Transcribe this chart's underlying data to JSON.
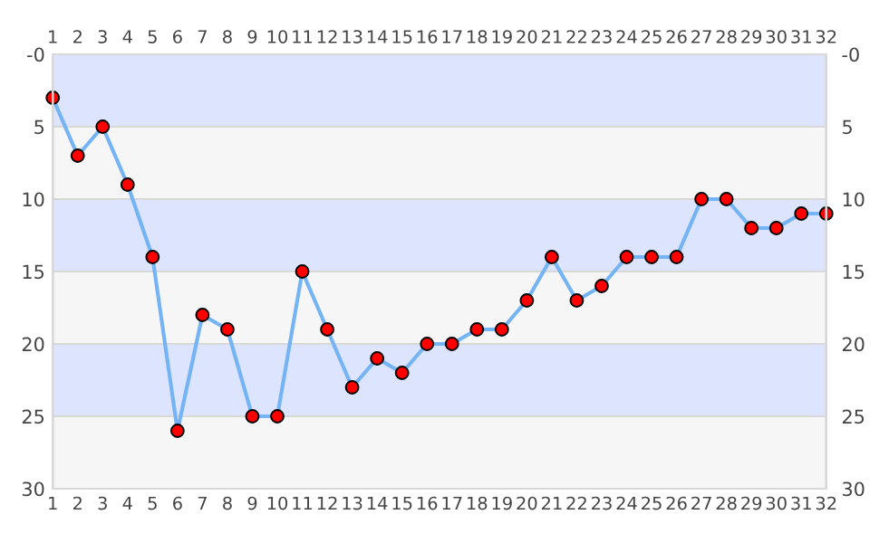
{
  "chart_data": {
    "type": "line",
    "x": [
      1,
      2,
      3,
      4,
      5,
      6,
      7,
      8,
      9,
      10,
      11,
      12,
      13,
      14,
      15,
      16,
      17,
      18,
      19,
      20,
      21,
      22,
      23,
      24,
      25,
      26,
      27,
      28,
      29,
      30,
      31,
      32
    ],
    "series": [
      {
        "color": "#74b4f4",
        "values": [
          3,
          7,
          5,
          9,
          14,
          26,
          18,
          19,
          25,
          25,
          15,
          19,
          23,
          21,
          22,
          20,
          20,
          19,
          19,
          17,
          14,
          17,
          16,
          14,
          14,
          14,
          10,
          10,
          12,
          12,
          11,
          11
        ]
      }
    ],
    "xlim": [
      1,
      32
    ],
    "xticks": [
      1,
      2,
      3,
      4,
      5,
      6,
      7,
      8,
      9,
      10,
      11,
      12,
      13,
      14,
      15,
      16,
      17,
      18,
      19,
      20,
      21,
      22,
      23,
      24,
      25,
      26,
      27,
      28,
      29,
      30,
      31,
      32
    ],
    "x2lim": [
      1,
      32
    ],
    "x2ticks": [
      1,
      2,
      3,
      4,
      5,
      6,
      7,
      8,
      9,
      10,
      11,
      12,
      13,
      14,
      15,
      16,
      17,
      18,
      19,
      20,
      21,
      22,
      23,
      24,
      25,
      26,
      27,
      28,
      29,
      30,
      31,
      32
    ],
    "ylim": [
      30,
      0
    ],
    "yticks": [
      {
        "value": 0,
        "label": "-0"
      },
      5,
      10,
      15,
      20,
      25,
      30
    ],
    "y2lim": [
      30,
      0
    ],
    "y2ticks": [
      {
        "value": 0,
        "label": "-0"
      },
      5,
      10,
      15,
      20,
      25,
      30
    ],
    "bands": [
      {
        "axis": "y",
        "from": 0,
        "to": 5,
        "color": "#dde4fd"
      },
      {
        "axis": "y",
        "from": 5,
        "to": 10,
        "color": "#f6f6f6"
      },
      {
        "axis": "y",
        "from": 10,
        "to": 15,
        "color": "#dde4fd"
      },
      {
        "axis": "y",
        "from": 15,
        "to": 20,
        "color": "#f6f6f6"
      },
      {
        "axis": "y",
        "from": 20,
        "to": 25,
        "color": "#dde4fd"
      },
      {
        "axis": "y",
        "from": 25,
        "to": 30,
        "color": "#f6f6f6"
      }
    ],
    "grid": "y",
    "marker": "circle",
    "line_style": "solid",
    "legend": false
  }
}
